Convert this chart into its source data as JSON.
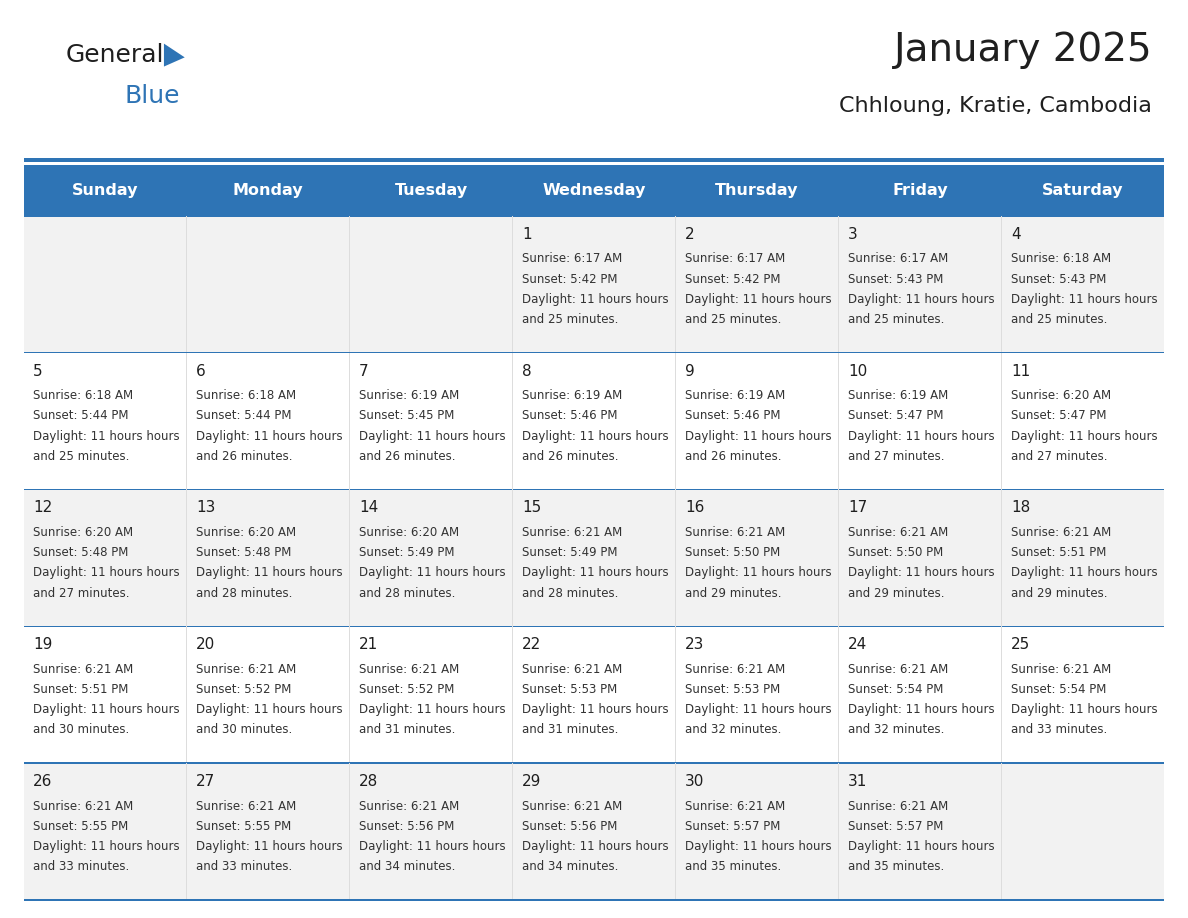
{
  "title": "January 2025",
  "subtitle": "Chhloung, Kratie, Cambodia",
  "days_of_week": [
    "Sunday",
    "Monday",
    "Tuesday",
    "Wednesday",
    "Thursday",
    "Friday",
    "Saturday"
  ],
  "header_bg": "#2E74B5",
  "header_text": "#FFFFFF",
  "row_bg_odd": "#F2F2F2",
  "row_bg_even": "#FFFFFF",
  "cell_border": "#CCCCCC",
  "day_num_color": "#1F1F1F",
  "info_text_color": "#333333",
  "title_color": "#1F1F1F",
  "subtitle_color": "#1F1F1F",
  "logo_general_color": "#1F1F1F",
  "logo_blue_color": "#2E74B5",
  "header_line_color": "#2E74B5",
  "calendar": [
    [
      {
        "day": "",
        "sunrise": "",
        "sunset": "",
        "daylight": ""
      },
      {
        "day": "",
        "sunrise": "",
        "sunset": "",
        "daylight": ""
      },
      {
        "day": "",
        "sunrise": "",
        "sunset": "",
        "daylight": ""
      },
      {
        "day": "1",
        "sunrise": "6:17 AM",
        "sunset": "5:42 PM",
        "daylight": "11 hours and 25 minutes."
      },
      {
        "day": "2",
        "sunrise": "6:17 AM",
        "sunset": "5:42 PM",
        "daylight": "11 hours and 25 minutes."
      },
      {
        "day": "3",
        "sunrise": "6:17 AM",
        "sunset": "5:43 PM",
        "daylight": "11 hours and 25 minutes."
      },
      {
        "day": "4",
        "sunrise": "6:18 AM",
        "sunset": "5:43 PM",
        "daylight": "11 hours and 25 minutes."
      }
    ],
    [
      {
        "day": "5",
        "sunrise": "6:18 AM",
        "sunset": "5:44 PM",
        "daylight": "11 hours and 25 minutes."
      },
      {
        "day": "6",
        "sunrise": "6:18 AM",
        "sunset": "5:44 PM",
        "daylight": "11 hours and 26 minutes."
      },
      {
        "day": "7",
        "sunrise": "6:19 AM",
        "sunset": "5:45 PM",
        "daylight": "11 hours and 26 minutes."
      },
      {
        "day": "8",
        "sunrise": "6:19 AM",
        "sunset": "5:46 PM",
        "daylight": "11 hours and 26 minutes."
      },
      {
        "day": "9",
        "sunrise": "6:19 AM",
        "sunset": "5:46 PM",
        "daylight": "11 hours and 26 minutes."
      },
      {
        "day": "10",
        "sunrise": "6:19 AM",
        "sunset": "5:47 PM",
        "daylight": "11 hours and 27 minutes."
      },
      {
        "day": "11",
        "sunrise": "6:20 AM",
        "sunset": "5:47 PM",
        "daylight": "11 hours and 27 minutes."
      }
    ],
    [
      {
        "day": "12",
        "sunrise": "6:20 AM",
        "sunset": "5:48 PM",
        "daylight": "11 hours and 27 minutes."
      },
      {
        "day": "13",
        "sunrise": "6:20 AM",
        "sunset": "5:48 PM",
        "daylight": "11 hours and 28 minutes."
      },
      {
        "day": "14",
        "sunrise": "6:20 AM",
        "sunset": "5:49 PM",
        "daylight": "11 hours and 28 minutes."
      },
      {
        "day": "15",
        "sunrise": "6:21 AM",
        "sunset": "5:49 PM",
        "daylight": "11 hours and 28 minutes."
      },
      {
        "day": "16",
        "sunrise": "6:21 AM",
        "sunset": "5:50 PM",
        "daylight": "11 hours and 29 minutes."
      },
      {
        "day": "17",
        "sunrise": "6:21 AM",
        "sunset": "5:50 PM",
        "daylight": "11 hours and 29 minutes."
      },
      {
        "day": "18",
        "sunrise": "6:21 AM",
        "sunset": "5:51 PM",
        "daylight": "11 hours and 29 minutes."
      }
    ],
    [
      {
        "day": "19",
        "sunrise": "6:21 AM",
        "sunset": "5:51 PM",
        "daylight": "11 hours and 30 minutes."
      },
      {
        "day": "20",
        "sunrise": "6:21 AM",
        "sunset": "5:52 PM",
        "daylight": "11 hours and 30 minutes."
      },
      {
        "day": "21",
        "sunrise": "6:21 AM",
        "sunset": "5:52 PM",
        "daylight": "11 hours and 31 minutes."
      },
      {
        "day": "22",
        "sunrise": "6:21 AM",
        "sunset": "5:53 PM",
        "daylight": "11 hours and 31 minutes."
      },
      {
        "day": "23",
        "sunrise": "6:21 AM",
        "sunset": "5:53 PM",
        "daylight": "11 hours and 32 minutes."
      },
      {
        "day": "24",
        "sunrise": "6:21 AM",
        "sunset": "5:54 PM",
        "daylight": "11 hours and 32 minutes."
      },
      {
        "day": "25",
        "sunrise": "6:21 AM",
        "sunset": "5:54 PM",
        "daylight": "11 hours and 33 minutes."
      }
    ],
    [
      {
        "day": "26",
        "sunrise": "6:21 AM",
        "sunset": "5:55 PM",
        "daylight": "11 hours and 33 minutes."
      },
      {
        "day": "27",
        "sunrise": "6:21 AM",
        "sunset": "5:55 PM",
        "daylight": "11 hours and 33 minutes."
      },
      {
        "day": "28",
        "sunrise": "6:21 AM",
        "sunset": "5:56 PM",
        "daylight": "11 hours and 34 minutes."
      },
      {
        "day": "29",
        "sunrise": "6:21 AM",
        "sunset": "5:56 PM",
        "daylight": "11 hours and 34 minutes."
      },
      {
        "day": "30",
        "sunrise": "6:21 AM",
        "sunset": "5:57 PM",
        "daylight": "11 hours and 35 minutes."
      },
      {
        "day": "31",
        "sunrise": "6:21 AM",
        "sunset": "5:57 PM",
        "daylight": "11 hours and 35 minutes."
      },
      {
        "day": "",
        "sunrise": "",
        "sunset": "",
        "daylight": ""
      }
    ]
  ]
}
